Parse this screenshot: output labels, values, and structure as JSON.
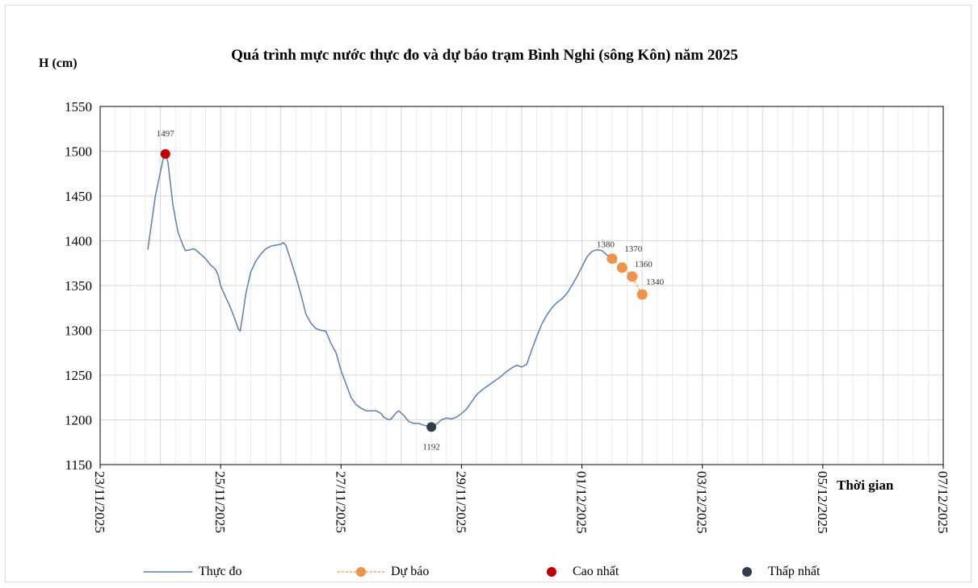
{
  "chart_data": {
    "type": "line",
    "title": "Quá trình mực nước thực đo và dự báo trạm Bình Nghi (sông Kôn) năm 2025",
    "ylabel": "H (cm)",
    "xlabel": "Thời gian",
    "ylim": [
      1150,
      1550
    ],
    "yticks": [
      "1150",
      "1200",
      "1250",
      "1300",
      "1350",
      "1400",
      "1450",
      "1500",
      "1550"
    ],
    "xticks": [
      "23/11/2025",
      "25/11/2025",
      "27/11/2025",
      "29/11/2025",
      "01/12/2025",
      "03/12/2025",
      "05/12/2025",
      "07/12/2025"
    ],
    "x_unit": "hours since 23/11/2025 00:00",
    "grid": true,
    "legend_position": "bottom",
    "series": [
      {
        "name": "Thực đo",
        "color": "#5a7fb4",
        "style": "line",
        "points": [
          [
            19,
            1390
          ],
          [
            22,
            1450
          ],
          [
            25,
            1490
          ],
          [
            26,
            1497
          ],
          [
            27,
            1488
          ],
          [
            29,
            1440
          ],
          [
            31,
            1410
          ],
          [
            33,
            1395
          ],
          [
            34,
            1389
          ],
          [
            36,
            1390
          ],
          [
            37,
            1391
          ],
          [
            38,
            1390
          ],
          [
            40,
            1385
          ],
          [
            42,
            1380
          ],
          [
            44,
            1373
          ],
          [
            46,
            1368
          ],
          [
            47,
            1362
          ],
          [
            48,
            1350
          ],
          [
            50,
            1337
          ],
          [
            52,
            1325
          ],
          [
            54,
            1310
          ],
          [
            55,
            1302
          ],
          [
            55.8,
            1299
          ],
          [
            57,
            1320
          ],
          [
            58,
            1340
          ],
          [
            60,
            1365
          ],
          [
            62,
            1377
          ],
          [
            64,
            1385
          ],
          [
            66,
            1391
          ],
          [
            68,
            1394
          ],
          [
            70,
            1395
          ],
          [
            72,
            1396
          ],
          [
            73,
            1398
          ],
          [
            74,
            1395
          ],
          [
            76,
            1378
          ],
          [
            78,
            1360
          ],
          [
            80,
            1340
          ],
          [
            82,
            1318
          ],
          [
            84,
            1308
          ],
          [
            86,
            1302
          ],
          [
            88,
            1300
          ],
          [
            90,
            1299
          ],
          [
            92,
            1285
          ],
          [
            94,
            1275
          ],
          [
            96,
            1255
          ],
          [
            98,
            1240
          ],
          [
            100,
            1225
          ],
          [
            102,
            1217
          ],
          [
            104,
            1213
          ],
          [
            106,
            1210
          ],
          [
            108,
            1210
          ],
          [
            110,
            1210
          ],
          [
            112,
            1207
          ],
          [
            113,
            1203
          ],
          [
            115,
            1200
          ],
          [
            116,
            1201
          ],
          [
            118,
            1208
          ],
          [
            119,
            1210
          ],
          [
            121,
            1205
          ],
          [
            123,
            1198
          ],
          [
            125,
            1196
          ],
          [
            127,
            1196
          ],
          [
            129,
            1194
          ],
          [
            132,
            1192
          ],
          [
            134,
            1195
          ],
          [
            136,
            1200
          ],
          [
            138,
            1202
          ],
          [
            140,
            1201
          ],
          [
            142,
            1203
          ],
          [
            144,
            1207
          ],
          [
            146,
            1212
          ],
          [
            148,
            1220
          ],
          [
            150,
            1228
          ],
          [
            152,
            1233
          ],
          [
            154,
            1237
          ],
          [
            156,
            1241
          ],
          [
            158,
            1245
          ],
          [
            160,
            1249
          ],
          [
            162,
            1254
          ],
          [
            164,
            1258
          ],
          [
            166,
            1261
          ],
          [
            168,
            1259
          ],
          [
            170,
            1262
          ],
          [
            172,
            1278
          ],
          [
            174,
            1293
          ],
          [
            176,
            1307
          ],
          [
            178,
            1317
          ],
          [
            180,
            1325
          ],
          [
            182,
            1331
          ],
          [
            184,
            1335
          ],
          [
            186,
            1341
          ],
          [
            188,
            1350
          ],
          [
            190,
            1360
          ],
          [
            192,
            1371
          ],
          [
            194,
            1382
          ],
          [
            196,
            1388
          ],
          [
            198,
            1390
          ],
          [
            200,
            1389
          ],
          [
            202,
            1384
          ],
          [
            204,
            1380
          ]
        ]
      },
      {
        "name": "Dự báo",
        "color": "#f0924a",
        "style": "dashed-marker",
        "points": [
          [
            204,
            1380
          ],
          [
            208,
            1370
          ],
          [
            212,
            1360
          ],
          [
            216,
            1340
          ]
        ],
        "labels": [
          "1380",
          "1370",
          "1360",
          "1340"
        ]
      }
    ],
    "annotations": [
      {
        "name": "Cao nhất",
        "x": 26,
        "y": 1497,
        "label": "1497",
        "color": "#c00000"
      },
      {
        "name": "Thấp nhất",
        "x": 132,
        "y": 1192,
        "label": "1192",
        "color": "#2f3d4e"
      }
    ]
  },
  "legend": {
    "measured": "Thực đo",
    "forecast": "Dự báo",
    "highest": "Cao nhất",
    "lowest": "Thấp nhất"
  }
}
